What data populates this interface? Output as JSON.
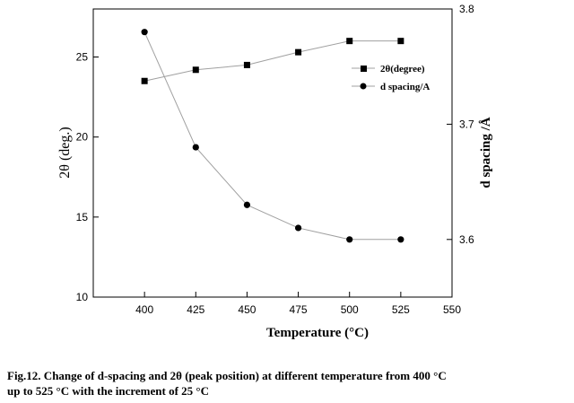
{
  "chart_data": {
    "type": "line",
    "x": [
      400,
      425,
      450,
      475,
      500,
      525
    ],
    "xlabel": "Temperature (°C)",
    "xlim": [
      375,
      550
    ],
    "xticks": [
      400,
      425,
      450,
      475,
      500,
      525,
      550
    ],
    "ylabel_left": "2θ (deg.)",
    "ylim_left": [
      10,
      28
    ],
    "yticks_left": [
      10,
      15,
      20,
      25
    ],
    "ylabel_right": "d spacing /Å",
    "ylim_right": [
      3.55,
      3.8
    ],
    "yticks_right": [
      3.6,
      3.7,
      3.8
    ],
    "series": [
      {
        "name": "2θ(degree)",
        "axis": "left",
        "marker": "square",
        "values": [
          23.5,
          24.2,
          24.5,
          25.3,
          26.0,
          26.0
        ]
      },
      {
        "name": "d spacing/A",
        "axis": "right",
        "marker": "circle",
        "values": [
          3.78,
          3.68,
          3.63,
          3.61,
          3.6,
          3.6
        ]
      }
    ],
    "legend_position": "top-right",
    "grid": false
  },
  "caption": {
    "line1": "Fig.12. Change of d-spacing and 2θ (peak position) at different temperature from 400 °C",
    "line2": "up to 525 °C with the increment of 25 °C"
  },
  "colors": {
    "line": "#a0a0a0",
    "marker": "#000000",
    "axis": "#000000"
  }
}
